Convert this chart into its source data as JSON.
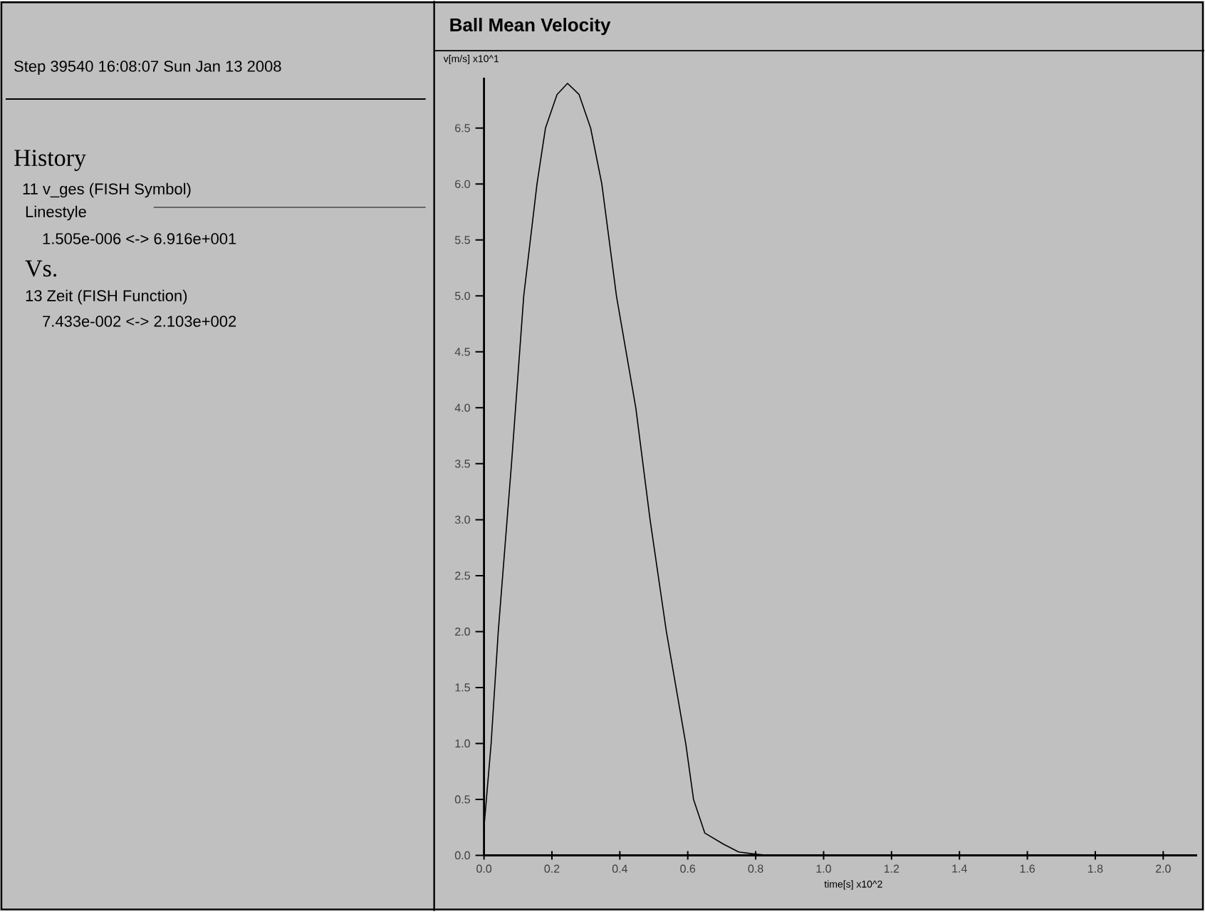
{
  "chart_data": {
    "type": "line",
    "title": "Ball Mean Velocity",
    "subtitle": "Step 39540  16:08:07 Sun Jan 13 2008",
    "xlabel": "time[s] x10^2",
    "ylabel": "v[m/s] x10^1",
    "annotations": [
      "History",
      "11 v_ges (FISH Symbol)",
      "Linestyle",
      "1.505e-006 <-> 6.916e+001",
      "Vs.",
      "13 Zeit (FISH Function)",
      "7.433e-002 <-> 2.103e+002"
    ],
    "x": [
      0,
      0.007,
      0.021,
      0.042,
      0.081,
      0.117,
      0.156,
      0.181,
      0.215,
      0.246,
      0.28,
      0.314,
      0.347,
      0.39,
      0.447,
      0.468,
      0.489,
      0.537,
      0.594,
      0.617,
      0.65,
      0.705,
      0.75,
      0.8,
      0.84
    ],
    "values": [
      0.25,
      0.5,
      1.0,
      2.0,
      3.5,
      5.0,
      6.0,
      6.5,
      6.8,
      6.9,
      6.8,
      6.5,
      6.0,
      5.0,
      4.0,
      3.5,
      3.0,
      2.0,
      1.0,
      0.5,
      0.2,
      0.1,
      0.03,
      0.01,
      0
    ],
    "color": "#000000",
    "xlim": [
      0,
      2.1
    ],
    "ylim": [
      0,
      6.95
    ],
    "xticks": [
      {
        "value": 0,
        "label": "0.0"
      },
      0.2,
      0.4,
      0.6,
      0.8,
      {
        "value": 1,
        "label": "1.0"
      },
      1.2,
      1.4,
      1.6,
      1.8,
      {
        "value": 2,
        "label": "2.0"
      }
    ],
    "yticks": [
      {
        "value": 0,
        "label": "0.0"
      },
      0.5,
      {
        "value": 1,
        "label": "1.0"
      },
      1.5,
      {
        "value": 2,
        "label": "2.0"
      },
      2.5,
      {
        "value": 3,
        "label": "3.0"
      },
      3.5,
      {
        "value": 4,
        "label": "4.0"
      },
      4.5,
      {
        "value": 5,
        "label": "5.0"
      },
      5.5,
      {
        "value": 6,
        "label": "6.0"
      },
      6.5
    ],
    "marker": "none",
    "line_style": "solid"
  }
}
